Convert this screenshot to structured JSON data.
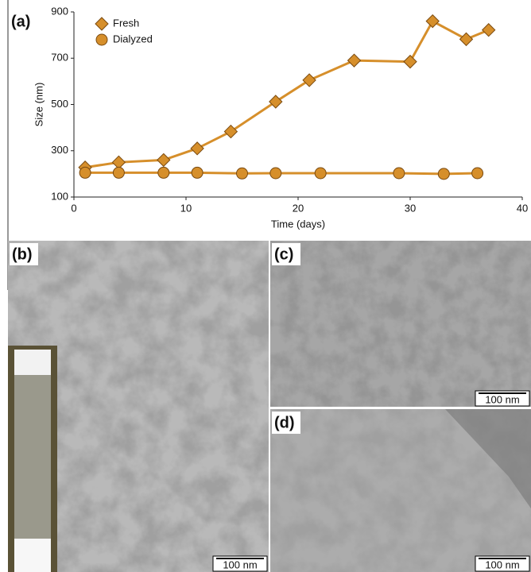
{
  "chart_data": {
    "type": "line",
    "label": "(a)",
    "x_label": "Time (days)",
    "y_label": "Size (nm)",
    "xlim": [
      0,
      40
    ],
    "xticks": [
      0,
      10,
      20,
      30,
      40
    ],
    "ylim": [
      100,
      900
    ],
    "yticks": [
      100,
      300,
      500,
      700,
      900
    ],
    "series": [
      {
        "name": "Fresh",
        "color": "#d68f2b",
        "marker": "diamond",
        "x": [
          1,
          4,
          8,
          11,
          14,
          18,
          21,
          25,
          30,
          32,
          35,
          37
        ],
        "values": [
          228,
          250,
          260,
          310,
          383,
          512,
          605,
          690,
          685,
          860,
          782,
          822
        ]
      },
      {
        "name": "Dialyzed",
        "color": "#d68f2b",
        "marker": "circle",
        "x": [
          1,
          4,
          8,
          11,
          15,
          18,
          22,
          29,
          33,
          36
        ],
        "values": [
          205,
          205,
          205,
          205,
          202,
          203,
          203,
          203,
          200,
          203
        ]
      }
    ]
  },
  "panels": [
    {
      "label": "(b)",
      "scale_bar": "100 nm"
    },
    {
      "label": "(c)",
      "scale_bar": "100 nm"
    },
    {
      "label": "(d)",
      "scale_bar": "100 nm"
    }
  ]
}
